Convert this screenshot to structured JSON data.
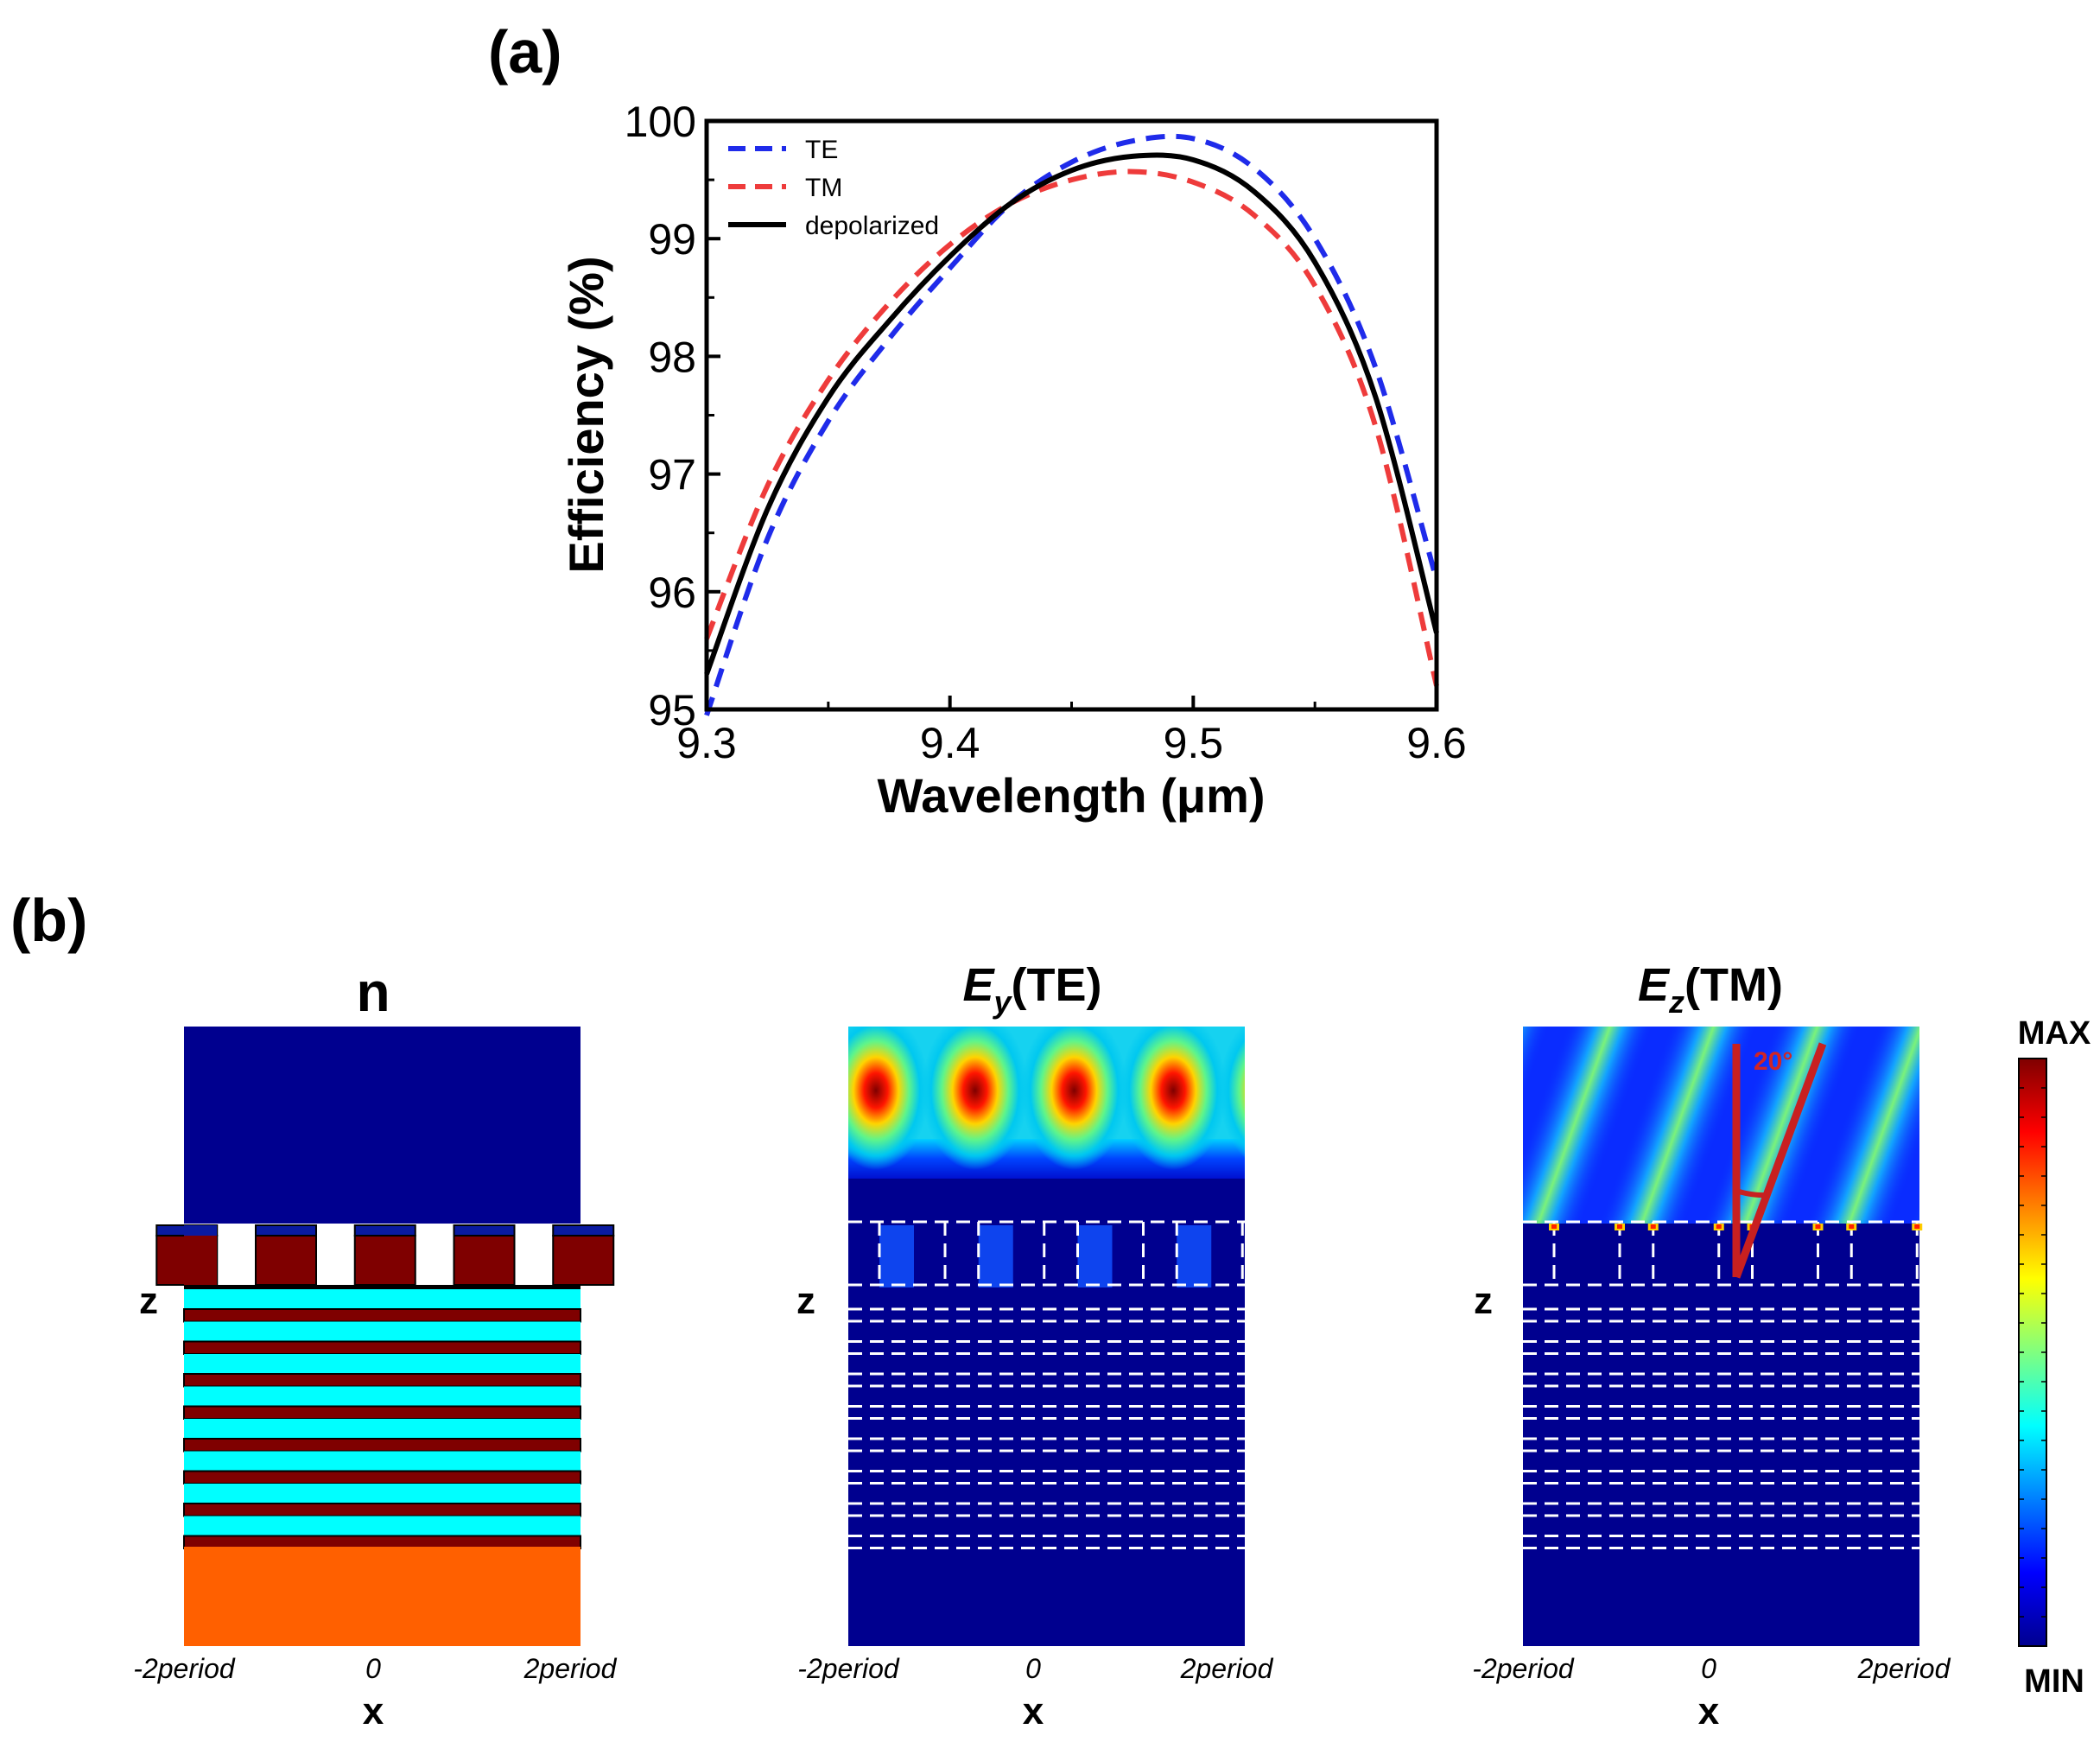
{
  "panel_a": {
    "label": "(a)"
  },
  "panel_b": {
    "label": "(b)",
    "maps": [
      {
        "title": "n",
        "title_sub": "",
        "title_rest": "",
        "z_label": "z",
        "x_label": "x",
        "x_ticks": [
          "-2period",
          "0",
          "2period"
        ]
      },
      {
        "title": "E",
        "title_sub": "y",
        "title_rest": "(TE)",
        "z_label": "z",
        "x_label": "x",
        "x_ticks": [
          "-2period",
          "0",
          "2period"
        ]
      },
      {
        "title": "E",
        "title_sub": "z",
        "title_rest": "(TM)",
        "z_label": "z",
        "x_label": "x",
        "x_ticks": [
          "-2period",
          "0",
          "2period"
        ],
        "annotation": "20°"
      }
    ],
    "colorbar": {
      "max_label": "MAX",
      "min_label": "MIN"
    }
  },
  "chart_data": {
    "type": "line",
    "title": "",
    "xlabel": "Wavelength (μm)",
    "ylabel": "Efficiency (%)",
    "xlim": [
      9.3,
      9.6
    ],
    "ylim": [
      95,
      100
    ],
    "x_ticks": [
      "9.3",
      "9.4",
      "9.5",
      "9.6"
    ],
    "y_ticks": [
      "95",
      "96",
      "97",
      "98",
      "99",
      "100"
    ],
    "legend_position": "top-left",
    "grid": false,
    "x": [
      9.3,
      9.325,
      9.35,
      9.375,
      9.4,
      9.425,
      9.45,
      9.475,
      9.5,
      9.525,
      9.55,
      9.575,
      9.6
    ],
    "series": [
      {
        "name": "TE",
        "style": "dashed",
        "color": "#1f2bea",
        "values": [
          94.95,
          96.45,
          97.45,
          98.15,
          98.75,
          99.3,
          99.65,
          99.83,
          99.85,
          99.6,
          99.0,
          97.9,
          96.1
        ]
      },
      {
        "name": "TM",
        "style": "dashed",
        "color": "#ee3b3b",
        "values": [
          95.6,
          96.9,
          97.8,
          98.45,
          98.95,
          99.3,
          99.5,
          99.57,
          99.48,
          99.2,
          98.6,
          97.4,
          95.2
        ]
      },
      {
        "name": "depolarized",
        "style": "solid",
        "color": "#000000",
        "values": [
          95.3,
          96.7,
          97.65,
          98.3,
          98.85,
          99.3,
          99.58,
          99.7,
          99.67,
          99.4,
          98.8,
          97.65,
          95.65
        ]
      }
    ]
  }
}
